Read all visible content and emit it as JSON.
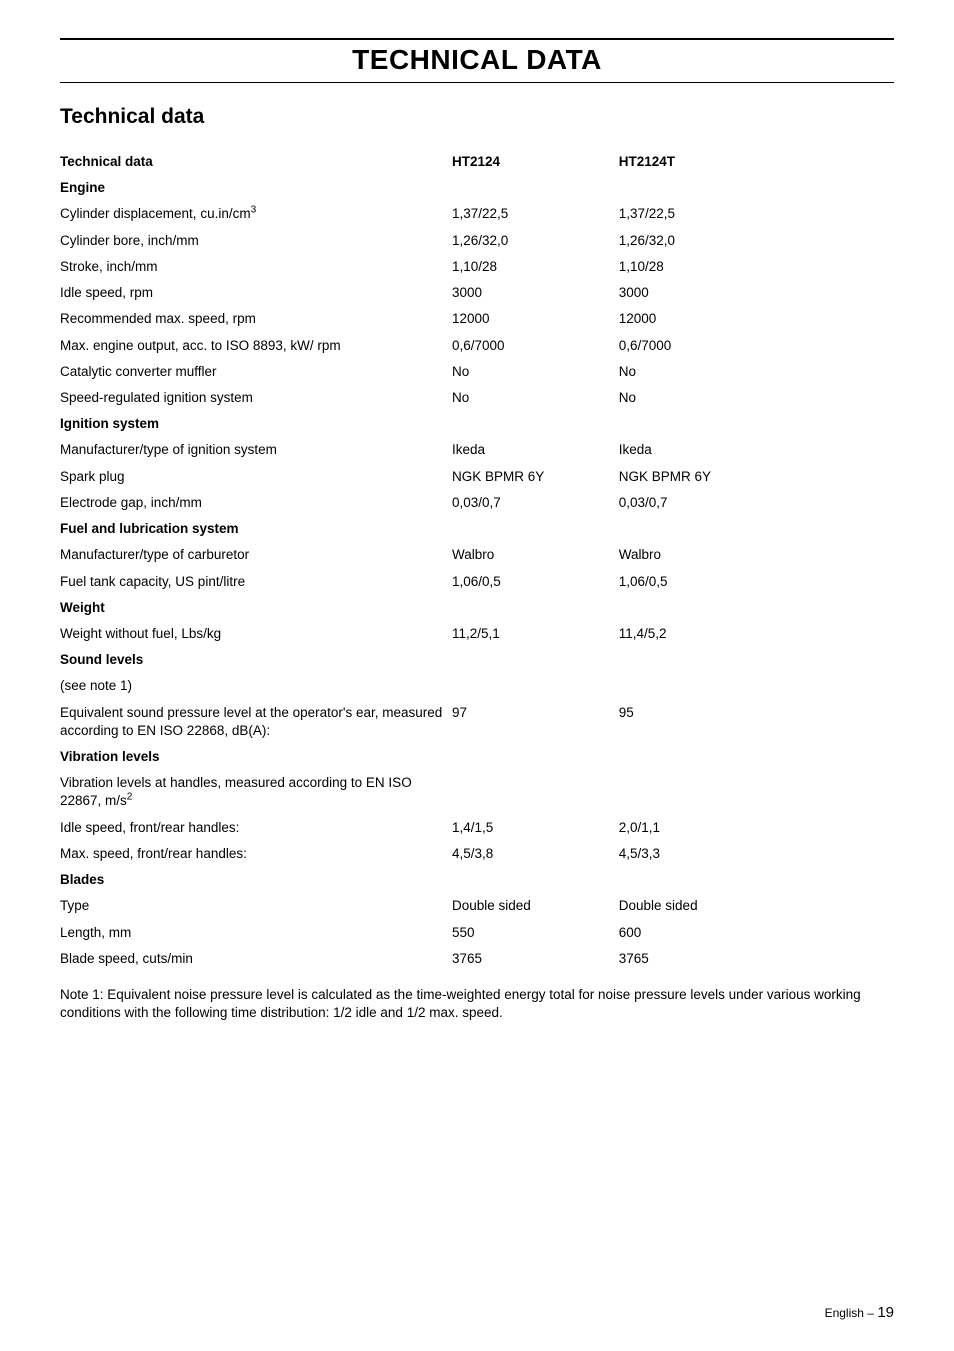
{
  "page_title": "TECHNICAL DATA",
  "section_title": "Technical data",
  "header": {
    "label": "Technical data",
    "col_a": "HT2124",
    "col_b": "HT2124T"
  },
  "groups": [
    {
      "heading": "Engine",
      "rows": [
        {
          "label": "Cylinder displacement, cu.in/cm",
          "sup": "3",
          "a": "1,37/22,5",
          "b": "1,37/22,5"
        },
        {
          "label": "Cylinder bore, inch/mm",
          "a": "1,26/32,0",
          "b": "1,26/32,0"
        },
        {
          "label": "Stroke, inch/mm",
          "a": "1,10/28",
          "b": "1,10/28"
        },
        {
          "label": "Idle speed, rpm",
          "a": "3000",
          "b": "3000"
        },
        {
          "label": "Recommended max. speed, rpm",
          "a": "12000",
          "b": "12000"
        },
        {
          "label": "Max. engine output, acc. to ISO 8893, kW/ rpm",
          "a": "0,6/7000",
          "b": "0,6/7000"
        },
        {
          "label": "Catalytic converter muffler",
          "a": "No",
          "b": "No"
        },
        {
          "label": "Speed-regulated ignition system",
          "a": "No",
          "b": "No"
        }
      ]
    },
    {
      "heading": "Ignition system",
      "rows": [
        {
          "label": "Manufacturer/type of ignition system",
          "a": "Ikeda",
          "b": "Ikeda"
        },
        {
          "label": "Spark plug",
          "a": "NGK BPMR 6Y",
          "b": "NGK BPMR 6Y"
        },
        {
          "label": "Electrode gap, inch/mm",
          "a": "0,03/0,7",
          "b": "0,03/0,7"
        }
      ]
    },
    {
      "heading": "Fuel and lubrication system",
      "rows": [
        {
          "label": "Manufacturer/type of carburetor",
          "a": "Walbro",
          "b": "Walbro"
        },
        {
          "label": "Fuel tank capacity, US pint/litre",
          "a": "1,06/0,5",
          "b": "1,06/0,5"
        }
      ]
    },
    {
      "heading": "Weight",
      "rows": [
        {
          "label": "Weight without fuel, Lbs/kg",
          "a": "11,2/5,1",
          "b": "11,4/5,2"
        }
      ]
    },
    {
      "heading": "Sound levels",
      "rows": [
        {
          "label": "(see note 1)",
          "a": "",
          "b": ""
        },
        {
          "label": "Equivalent sound pressure level at the operator's ear, measured according to EN ISO 22868, dB(A):",
          "a": "97",
          "b": "95"
        }
      ]
    },
    {
      "heading": "Vibration levels",
      "rows": [
        {
          "label": "Vibration levels at handles, measured according to EN ISO 22867, m/s",
          "sup": "2",
          "a": "",
          "b": ""
        },
        {
          "label": "Idle speed, front/rear handles:",
          "a": "1,4/1,5",
          "b": "2,0/1,1"
        },
        {
          "label": "Max. speed, front/rear handles:",
          "a": "4,5/3,8",
          "b": "4,5/3,3"
        }
      ]
    },
    {
      "heading": "Blades",
      "rows": [
        {
          "label": "Type",
          "a": "Double sided",
          "b": "Double sided"
        },
        {
          "label": "Length, mm",
          "a": "550",
          "b": "600"
        },
        {
          "label": "Blade speed, cuts/min",
          "a": "3765",
          "b": "3765"
        }
      ]
    }
  ],
  "note": "Note 1: Equivalent noise pressure level is calculated as the time-weighted energy total for noise pressure levels under various working conditions with the following time distribution: 1/2 idle and 1/2 max. speed.",
  "footer": {
    "lang": "English",
    "sep": "–",
    "page": "19"
  }
}
